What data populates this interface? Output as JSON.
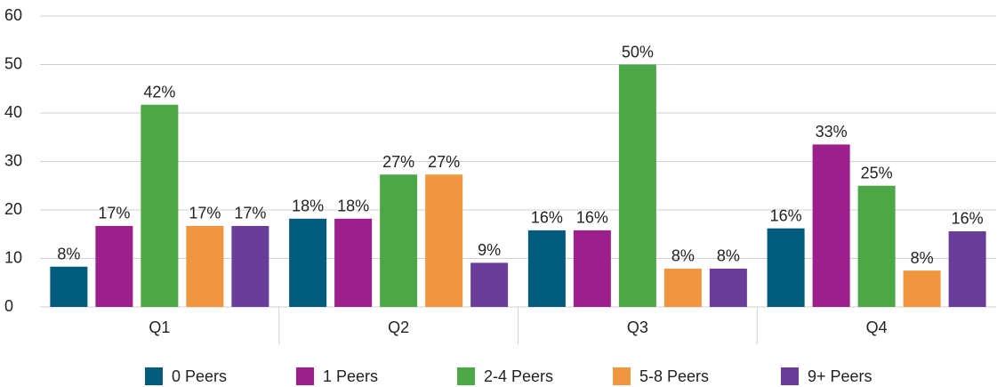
{
  "chart_data": {
    "type": "bar",
    "categories": [
      "Q1",
      "Q2",
      "Q3",
      "Q4"
    ],
    "series": [
      {
        "name": "0 Peers",
        "color": "#005b7c",
        "values": [
          8.3,
          18.2,
          15.8,
          16.2
        ],
        "value_labels": [
          "8%",
          "18%",
          "16%",
          "16%"
        ]
      },
      {
        "name": "1 Peers",
        "color": "#9c1f8b",
        "values": [
          16.7,
          18.2,
          15.8,
          33.5
        ],
        "value_labels": [
          "17%",
          "18%",
          "16%",
          "33%"
        ]
      },
      {
        "name": "2-4 Peers",
        "color": "#4ca847",
        "values": [
          41.7,
          27.3,
          50,
          25
        ],
        "value_labels": [
          "42%",
          "27%",
          "50%",
          "25%"
        ]
      },
      {
        "name": "5-8 Peers",
        "color": "#f0963f",
        "values": [
          16.7,
          27.3,
          7.9,
          7.5
        ],
        "value_labels": [
          "17%",
          "27%",
          "8%",
          "8%"
        ]
      },
      {
        "name": "9+ Peers",
        "color": "#6a3d9a",
        "values": [
          16.7,
          9.1,
          7.9,
          15.6
        ],
        "value_labels": [
          "17%",
          "9%",
          "8%",
          "16%"
        ]
      }
    ],
    "ylim": [
      0,
      60
    ],
    "yticks": [
      0,
      10,
      20,
      30,
      40,
      50,
      60
    ],
    "grid": true,
    "legend": "bottom"
  }
}
